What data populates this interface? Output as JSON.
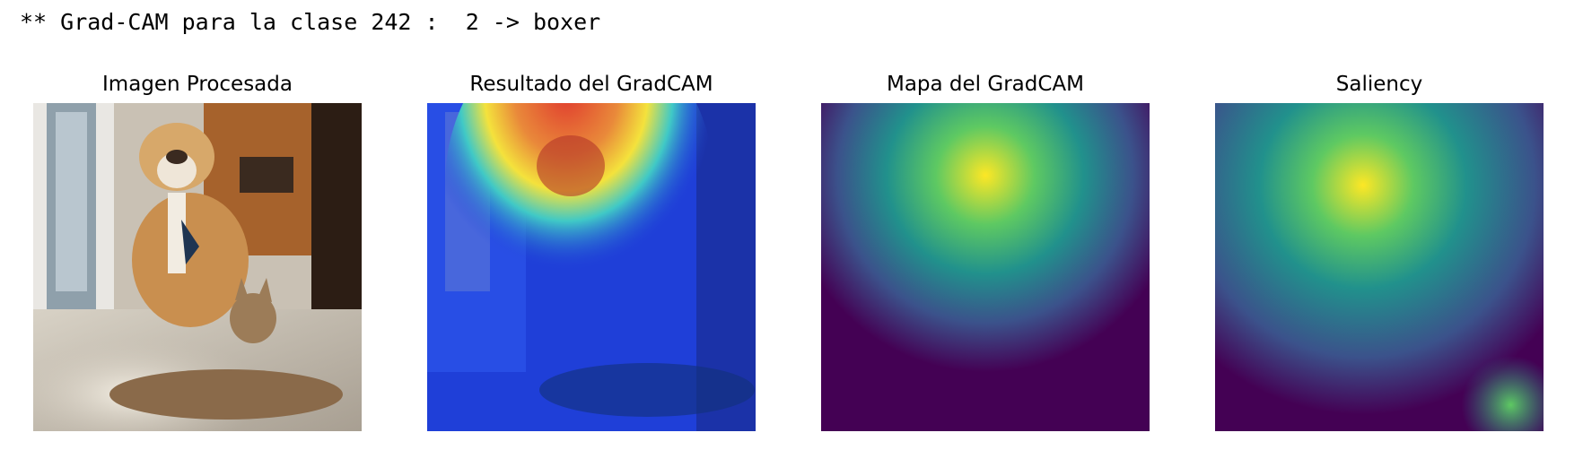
{
  "log": {
    "text": "** Grad-CAM para la clase 242 :  2 -> boxer"
  },
  "panels": [
    {
      "title": "Imagen Procesada"
    },
    {
      "title": "Resultado del GradCAM"
    },
    {
      "title": "Mapa del GradCAM"
    },
    {
      "title": "Saliency"
    }
  ],
  "colors": {
    "viridis_dark": "#440154",
    "viridis_blue": "#3b528b",
    "viridis_teal": "#21918c",
    "viridis_green": "#5ec962",
    "viridis_yellow": "#fde725",
    "jet_blue": "#1f3fd8",
    "jet_red": "#e03b2e",
    "jet_yellow": "#f4e23c"
  }
}
